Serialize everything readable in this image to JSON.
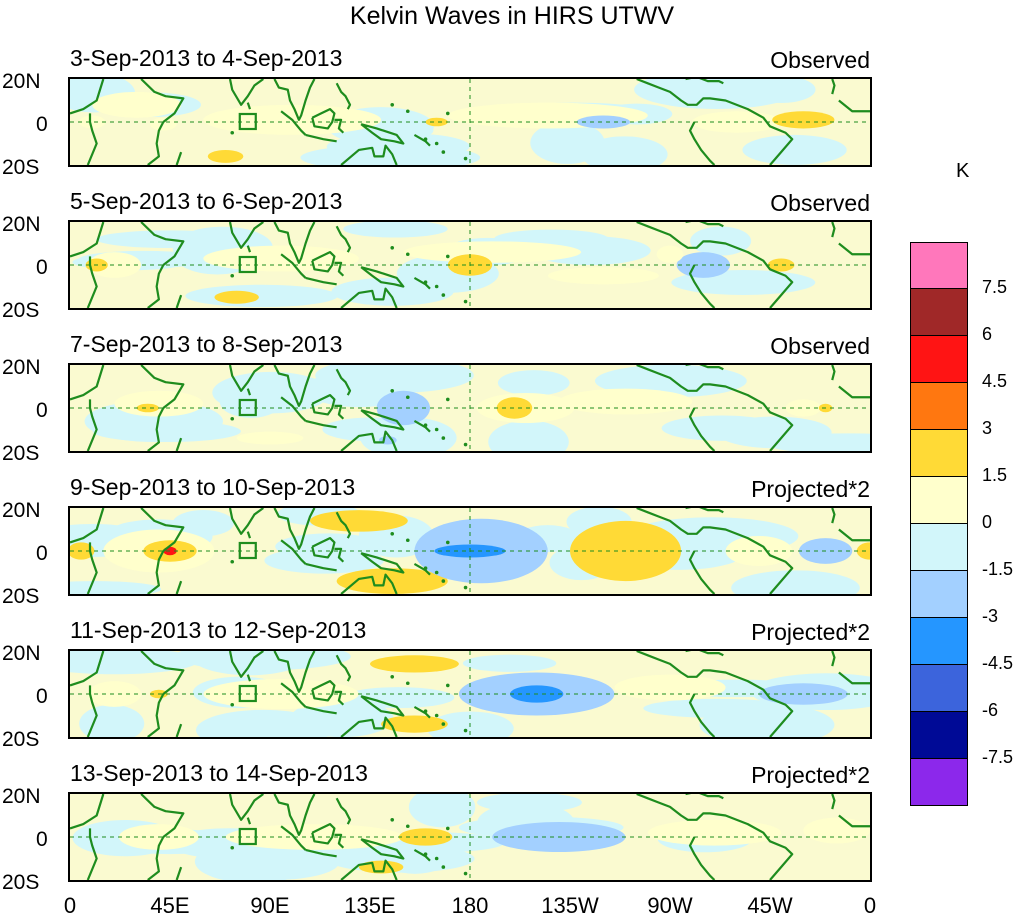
{
  "title": "Kelvin Waves in HIRS UTWV",
  "panels": [
    {
      "dates": "3-Sep-2013 to 4-Sep-2013",
      "type": "Observed"
    },
    {
      "dates": "5-Sep-2013 to 6-Sep-2013",
      "type": "Observed"
    },
    {
      "dates": "7-Sep-2013 to 8-Sep-2013",
      "type": "Observed"
    },
    {
      "dates": "9-Sep-2013 to 10-Sep-2013",
      "type": "Projected*2"
    },
    {
      "dates": "11-Sep-2013 to 12-Sep-2013",
      "type": "Projected*2"
    },
    {
      "dates": "13-Sep-2013 to 14-Sep-2013",
      "type": "Projected*2"
    }
  ],
  "lat_labels": {
    "north": "20N",
    "equator": "0",
    "south": "20S"
  },
  "lon_labels": [
    "0",
    "45E",
    "90E",
    "135E",
    "180",
    "135W",
    "90W",
    "45W",
    "0"
  ],
  "colorbar": {
    "units": "K",
    "colors": [
      "#ff77bb",
      "#a02828",
      "#ff1414",
      "#ff7710",
      "#ffda36",
      "#ffffcc",
      "#d2f6fa",
      "#a3d0ff",
      "#2596ff",
      "#3c64dc",
      "#000a96",
      "#8c28eb"
    ],
    "labels": [
      "7.5",
      "6",
      "4.5",
      "3",
      "1.5",
      "0",
      "-1.5",
      "-3",
      "-4.5",
      "-6",
      "-7.5"
    ]
  },
  "colors": {
    "land_outline": "#1e8c1e",
    "equator_line": "#1e8c1e",
    "base_field": "#fafad0"
  },
  "fields": [
    [
      {
        "lon": 30,
        "lat": 8,
        "rx": 20,
        "ry": 6,
        "c": 1
      },
      {
        "lon": 42,
        "lat": -1,
        "rx": 6,
        "ry": 3,
        "c": 1
      },
      {
        "lon": 100,
        "lat": 1,
        "rx": 40,
        "ry": 7,
        "c": 1
      },
      {
        "lon": 215,
        "lat": 3,
        "rx": 45,
        "ry": 6,
        "c": 1
      },
      {
        "lon": 300,
        "lat": 0,
        "rx": 20,
        "ry": 5,
        "c": 1
      },
      {
        "lon": 330,
        "lat": 1,
        "rx": 14,
        "ry": 4,
        "c": 4
      },
      {
        "lon": 70,
        "lat": -16,
        "rx": 8,
        "ry": 3,
        "c": 4
      },
      {
        "lon": 10,
        "lat": 0,
        "rx": 6,
        "ry": 3,
        "c": 1
      },
      {
        "lon": 240,
        "lat": 0,
        "rx": 12,
        "ry": 3,
        "c": 2
      },
      {
        "lon": 165,
        "lat": 0,
        "rx": 5,
        "ry": 2,
        "c": 4
      }
    ],
    [
      {
        "lon": 20,
        "lat": 0,
        "rx": 12,
        "ry": 6,
        "c": 1
      },
      {
        "lon": 12,
        "lat": 0,
        "rx": 5,
        "ry": 3,
        "c": 4
      },
      {
        "lon": 95,
        "lat": 3,
        "rx": 35,
        "ry": 6,
        "c": 1
      },
      {
        "lon": 190,
        "lat": 6,
        "rx": 40,
        "ry": 5,
        "c": 1
      },
      {
        "lon": 285,
        "lat": 0,
        "rx": 12,
        "ry": 6,
        "c": 2
      },
      {
        "lon": 270,
        "lat": 5,
        "rx": 6,
        "ry": 4,
        "c": 1
      },
      {
        "lon": 320,
        "lat": 0,
        "rx": 6,
        "ry": 3,
        "c": 4
      },
      {
        "lon": 75,
        "lat": -15,
        "rx": 10,
        "ry": 3,
        "c": 4
      },
      {
        "lon": 180,
        "lat": 0,
        "rx": 10,
        "ry": 5,
        "c": 4
      },
      {
        "lon": 240,
        "lat": -5,
        "rx": 25,
        "ry": 4,
        "c": 1
      }
    ],
    [
      {
        "lon": 40,
        "lat": 2,
        "rx": 20,
        "ry": 6,
        "c": 1
      },
      {
        "lon": 35,
        "lat": 0,
        "rx": 5,
        "ry": 2,
        "c": 4
      },
      {
        "lon": 150,
        "lat": 0,
        "rx": 12,
        "ry": 8,
        "c": 2
      },
      {
        "lon": 205,
        "lat": 0,
        "rx": 22,
        "ry": 7,
        "c": 1
      },
      {
        "lon": 200,
        "lat": 0,
        "rx": 8,
        "ry": 5,
        "c": 4
      },
      {
        "lon": 250,
        "lat": 3,
        "rx": 30,
        "ry": 6,
        "c": 1
      },
      {
        "lon": 330,
        "lat": 0,
        "rx": 8,
        "ry": 4,
        "c": 1
      },
      {
        "lon": 340,
        "lat": 0,
        "rx": 3,
        "ry": 2,
        "c": 4
      },
      {
        "lon": 90,
        "lat": -14,
        "rx": 15,
        "ry": 3,
        "c": 1
      },
      {
        "lon": 143,
        "lat": -15,
        "rx": 4,
        "ry": 2,
        "c": 2
      }
    ],
    [
      {
        "lon": 40,
        "lat": 0,
        "rx": 25,
        "ry": 10,
        "c": 1
      },
      {
        "lon": 45,
        "lat": 0,
        "rx": 12,
        "ry": 5,
        "c": 4
      },
      {
        "lon": 45,
        "lat": 0,
        "rx": 3,
        "ry": 2,
        "c": 3
      },
      {
        "lon": 5,
        "lat": 0,
        "rx": 6,
        "ry": 4,
        "c": 4
      },
      {
        "lon": 130,
        "lat": 14,
        "rx": 22,
        "ry": 5,
        "c": 4
      },
      {
        "lon": 145,
        "lat": -14,
        "rx": 25,
        "ry": 6,
        "c": 4
      },
      {
        "lon": 185,
        "lat": 0,
        "rx": 30,
        "ry": 15,
        "c": 2
      },
      {
        "lon": 180,
        "lat": 0,
        "rx": 16,
        "ry": 3,
        "c": 3
      },
      {
        "lon": 250,
        "lat": 0,
        "rx": 25,
        "ry": 14,
        "c": 4
      },
      {
        "lon": 310,
        "lat": 0,
        "rx": 15,
        "ry": 7,
        "c": 1
      },
      {
        "lon": 340,
        "lat": 0,
        "rx": 12,
        "ry": 6,
        "c": 2
      },
      {
        "lon": 360,
        "lat": 0,
        "rx": 6,
        "ry": 4,
        "c": 4
      }
    ],
    [
      {
        "lon": 20,
        "lat": 0,
        "rx": 12,
        "ry": 6,
        "c": 1
      },
      {
        "lon": 95,
        "lat": 0,
        "rx": 35,
        "ry": 7,
        "c": 1
      },
      {
        "lon": 155,
        "lat": 14,
        "rx": 20,
        "ry": 4,
        "c": 4
      },
      {
        "lon": 155,
        "lat": -14,
        "rx": 15,
        "ry": 4,
        "c": 4
      },
      {
        "lon": 210,
        "lat": 0,
        "rx": 35,
        "ry": 10,
        "c": 2
      },
      {
        "lon": 210,
        "lat": 0,
        "rx": 12,
        "ry": 4,
        "c": 3
      },
      {
        "lon": 270,
        "lat": 3,
        "rx": 25,
        "ry": 6,
        "c": 1
      },
      {
        "lon": 330,
        "lat": 0,
        "rx": 20,
        "ry": 5,
        "c": 2
      },
      {
        "lon": 40,
        "lat": 0,
        "rx": 4,
        "ry": 2,
        "c": 4
      }
    ],
    [
      {
        "lon": 40,
        "lat": 0,
        "rx": 18,
        "ry": 6,
        "c": 1
      },
      {
        "lon": 110,
        "lat": 0,
        "rx": 40,
        "ry": 6,
        "c": 1
      },
      {
        "lon": 160,
        "lat": 0,
        "rx": 12,
        "ry": 4,
        "c": 4
      },
      {
        "lon": 140,
        "lat": -14,
        "rx": 10,
        "ry": 3,
        "c": 4
      },
      {
        "lon": 220,
        "lat": 0,
        "rx": 30,
        "ry": 7,
        "c": 2
      },
      {
        "lon": 290,
        "lat": 2,
        "rx": 30,
        "ry": 6,
        "c": 1
      },
      {
        "lon": 345,
        "lat": 3,
        "rx": 15,
        "ry": 6,
        "c": 1
      }
    ]
  ]
}
